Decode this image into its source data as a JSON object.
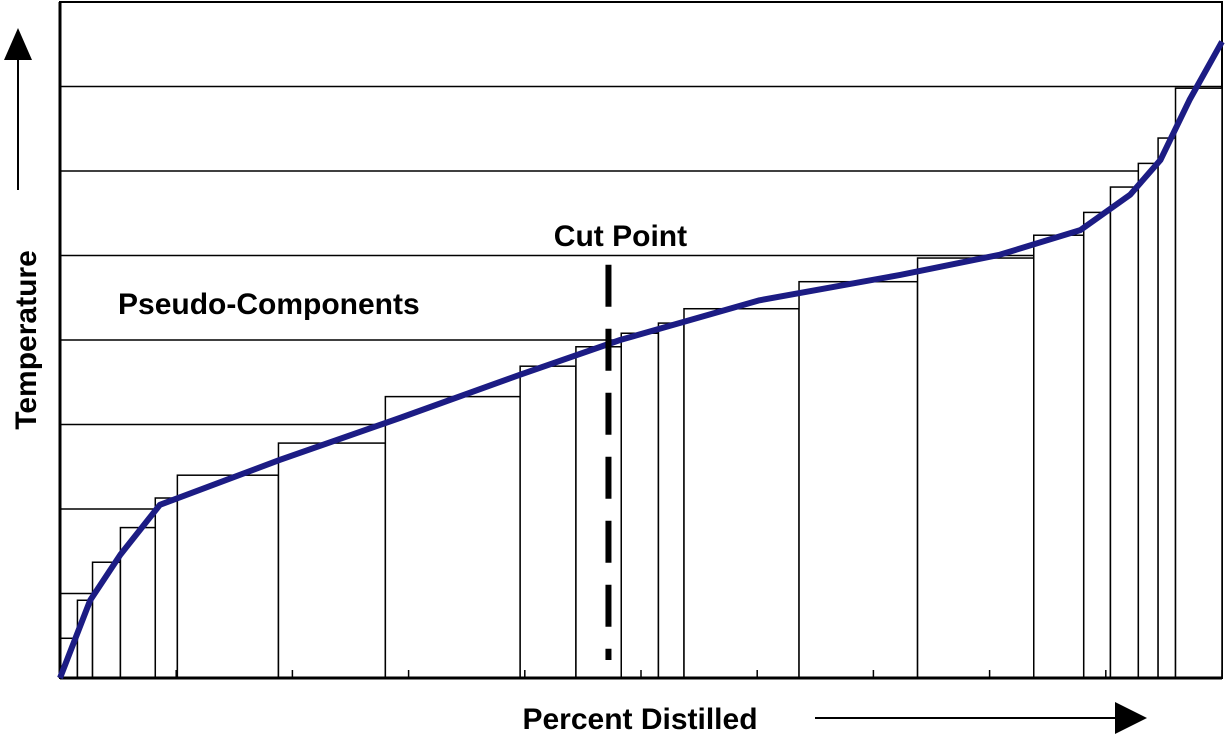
{
  "chart_data": {
    "type": "histogram",
    "xlabel": "Percent Distilled",
    "ylabel": "Temperature",
    "xlim": [
      0,
      100
    ],
    "xticks": [
      0,
      10,
      20,
      30,
      40,
      50,
      60,
      70,
      80,
      90,
      100
    ],
    "ylim": [
      0,
      8
    ],
    "yticks": [
      0,
      1,
      2,
      3,
      4,
      5,
      6,
      7,
      8
    ],
    "grid": true,
    "bins": [
      0,
      1.5,
      2.8,
      5.2,
      8.2,
      10.1,
      18.8,
      28.0,
      39.6,
      44.4,
      48.3,
      51.5,
      53.7,
      63.6,
      73.8,
      83.8,
      88.1,
      90.4,
      92.8,
      94.5,
      96.0,
      100
    ],
    "values": [
      0.47,
      0.92,
      1.37,
      1.78,
      2.13,
      2.4,
      2.78,
      3.33,
      3.69,
      3.92,
      4.08,
      4.2,
      4.37,
      4.69,
      4.97,
      5.24,
      5.51,
      5.81,
      6.09,
      6.39,
      6.98
    ],
    "color": "#ffffff",
    "curve": {
      "color": "#1c1c84",
      "x": [
        0,
        2.6,
        5.2,
        8.6,
        18.9,
        29.3,
        39.6,
        48.2,
        60.2,
        72.3,
        80.9,
        87.8,
        92.1,
        94.7,
        97.2,
        100
      ],
      "values": [
        0,
        0.92,
        1.46,
        2.05,
        2.58,
        3.08,
        3.59,
        4.0,
        4.47,
        4.77,
        5.01,
        5.3,
        5.72,
        6.13,
        6.84,
        7.53
      ]
    },
    "cut_point": {
      "label": "Cut Point",
      "x": 47.2,
      "top": 4.89
    },
    "annotations": [
      "Pseudo-Components"
    ]
  }
}
